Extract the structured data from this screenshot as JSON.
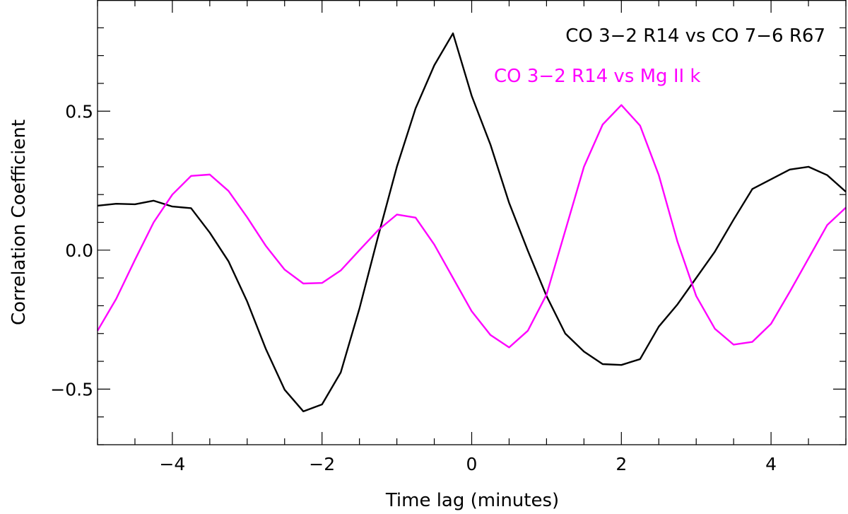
{
  "chart_data": {
    "type": "line",
    "xlabel": "Time lag (minutes)",
    "ylabel": "Correlation Coefficient",
    "xlim": [
      -5,
      5
    ],
    "ylim": [
      -0.7,
      0.9
    ],
    "xticks": [
      -4,
      -2,
      0,
      2,
      4
    ],
    "xtick_labels": [
      "−4",
      "−2",
      "0",
      "2",
      "4"
    ],
    "yticks": [
      -0.5,
      0.0,
      0.5
    ],
    "ytick_labels": [
      "−0.5",
      "0.0",
      "0.5"
    ],
    "grid": false,
    "legend_position": "top-right",
    "series": [
      {
        "name": "CO 3−2 R14 vs CO 7−6 R67",
        "color": "#000000",
        "x": [
          -5.0,
          -4.75,
          -4.5,
          -4.25,
          -4.0,
          -3.75,
          -3.5,
          -3.25,
          -3.0,
          -2.75,
          -2.5,
          -2.25,
          -2.0,
          -1.75,
          -1.5,
          -1.25,
          -1.0,
          -0.75,
          -0.5,
          -0.25,
          0.0,
          0.25,
          0.5,
          0.75,
          1.0,
          1.25,
          1.5,
          1.75,
          2.0,
          2.25,
          2.5,
          2.75,
          3.0,
          3.25,
          3.5,
          3.75,
          4.0,
          4.25,
          4.5,
          4.75,
          5.0
        ],
        "y": [
          0.16,
          0.167,
          0.165,
          0.178,
          0.157,
          0.151,
          0.063,
          -0.04,
          -0.185,
          -0.356,
          -0.502,
          -0.58,
          -0.555,
          -0.44,
          -0.21,
          0.05,
          0.3,
          0.51,
          0.665,
          0.78,
          0.555,
          0.38,
          0.17,
          -0.002,
          -0.165,
          -0.3,
          -0.365,
          -0.41,
          -0.413,
          -0.392,
          -0.275,
          -0.195,
          -0.1,
          -0.005,
          0.11,
          0.22,
          0.255,
          0.29,
          0.3,
          0.27,
          0.21
        ]
      },
      {
        "name": "CO 3−2 R14 vs Mg II k",
        "color": "#ff00ff",
        "x": [
          -5.0,
          -4.75,
          -4.5,
          -4.25,
          -4.0,
          -3.75,
          -3.5,
          -3.25,
          -3.0,
          -2.75,
          -2.5,
          -2.25,
          -2.0,
          -1.75,
          -1.5,
          -1.25,
          -1.0,
          -0.75,
          -0.5,
          -0.25,
          0.0,
          0.25,
          0.5,
          0.75,
          1.0,
          1.25,
          1.5,
          1.75,
          2.0,
          2.25,
          2.5,
          2.75,
          3.0,
          3.25,
          3.5,
          3.75,
          4.0,
          4.25,
          4.5,
          4.75,
          5.0
        ],
        "y": [
          -0.29,
          -0.175,
          -0.035,
          0.1,
          0.2,
          0.267,
          0.272,
          0.213,
          0.118,
          0.015,
          -0.07,
          -0.12,
          -0.118,
          -0.073,
          0.0,
          0.072,
          0.128,
          0.117,
          0.02,
          -0.1,
          -0.22,
          -0.305,
          -0.35,
          -0.29,
          -0.16,
          0.07,
          0.3,
          0.452,
          0.522,
          0.448,
          0.27,
          0.03,
          -0.165,
          -0.283,
          -0.34,
          -0.33,
          -0.265,
          -0.15,
          -0.03,
          0.09,
          0.153
        ]
      }
    ]
  }
}
